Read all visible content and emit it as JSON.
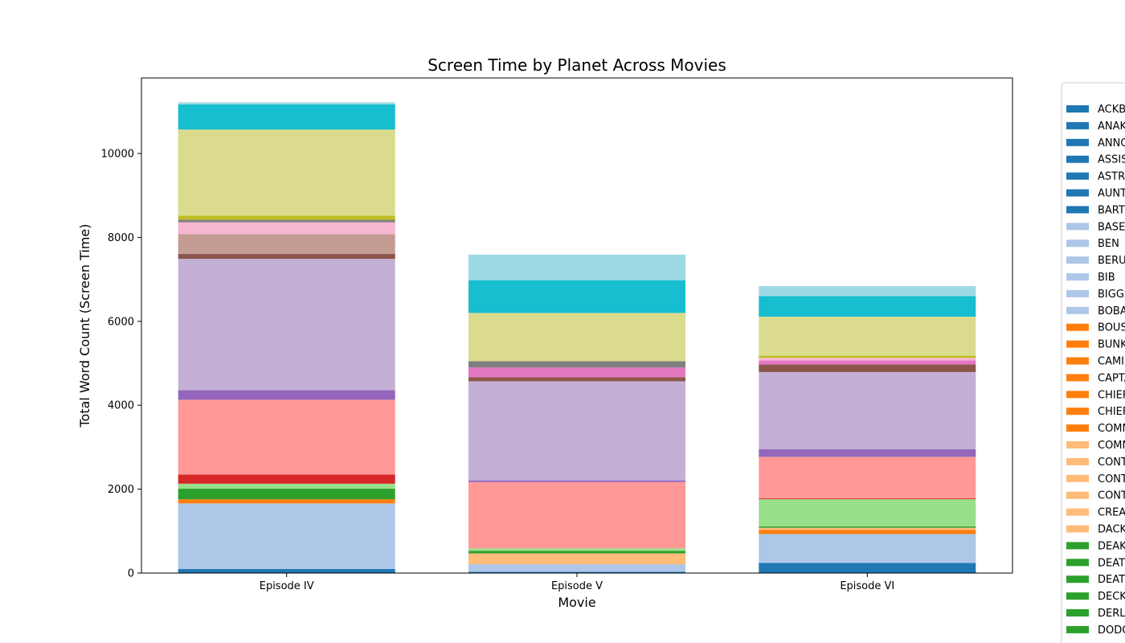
{
  "chart_data": {
    "type": "bar",
    "stacked": true,
    "title": "Screen Time by Planet Across Movies",
    "xlabel": "Movie",
    "ylabel": "Total Word Count (Screen Time)",
    "categories": [
      "Episode IV",
      "Episode V",
      "Episode VI"
    ],
    "ylim": [
      0,
      11800
    ],
    "yticks": [
      0,
      2000,
      4000,
      6000,
      8000,
      10000
    ],
    "grid": false,
    "legend_position": "right",
    "segments": [
      [
        {
          "value": 100,
          "color": "#1f77b4"
        },
        {
          "value": 1560,
          "color": "#aec7e8"
        },
        {
          "value": 100,
          "color": "#ff7f0e"
        },
        {
          "value": 250,
          "color": "#2ca02c"
        },
        {
          "value": 120,
          "color": "#98df8a"
        },
        {
          "value": 220,
          "color": "#d62728"
        },
        {
          "value": 1780,
          "color": "#ff9896"
        },
        {
          "value": 230,
          "color": "#9467bd"
        },
        {
          "value": 3130,
          "color": "#c5b0d5"
        },
        {
          "value": 120,
          "color": "#8c564b"
        },
        {
          "value": 470,
          "color": "#c49c94"
        },
        {
          "value": 280,
          "color": "#f7b6d2"
        },
        {
          "value": 60,
          "color": "#7f7f7f"
        },
        {
          "value": 100,
          "color": "#bcbd22"
        },
        {
          "value": 2050,
          "color": "#dbdb8d"
        },
        {
          "value": 600,
          "color": "#17becf"
        },
        {
          "value": 50,
          "color": "#9edae5"
        }
      ],
      [
        {
          "value": 30,
          "color": "#1f77b4"
        },
        {
          "value": 180,
          "color": "#aec7e8"
        },
        {
          "value": 260,
          "color": "#ffbb78"
        },
        {
          "value": 60,
          "color": "#2ca02c"
        },
        {
          "value": 60,
          "color": "#98df8a"
        },
        {
          "value": 1580,
          "color": "#ff9896"
        },
        {
          "value": 40,
          "color": "#9467bd"
        },
        {
          "value": 2360,
          "color": "#c5b0d5"
        },
        {
          "value": 100,
          "color": "#8c564b"
        },
        {
          "value": 230,
          "color": "#e377c2"
        },
        {
          "value": 150,
          "color": "#7f7f7f"
        },
        {
          "value": 1150,
          "color": "#dbdb8d"
        },
        {
          "value": 780,
          "color": "#17becf"
        },
        {
          "value": 610,
          "color": "#9edae5"
        }
      ],
      [
        {
          "value": 240,
          "color": "#1f77b4"
        },
        {
          "value": 690,
          "color": "#aec7e8"
        },
        {
          "value": 100,
          "color": "#ff7f0e"
        },
        {
          "value": 50,
          "color": "#ffbb78"
        },
        {
          "value": 30,
          "color": "#2ca02c"
        },
        {
          "value": 650,
          "color": "#98df8a"
        },
        {
          "value": 20,
          "color": "#d62728"
        },
        {
          "value": 990,
          "color": "#ff9896"
        },
        {
          "value": 180,
          "color": "#9467bd"
        },
        {
          "value": 1840,
          "color": "#c5b0d5"
        },
        {
          "value": 180,
          "color": "#8c564b"
        },
        {
          "value": 100,
          "color": "#e377c2"
        },
        {
          "value": 60,
          "color": "#f7b6d2"
        },
        {
          "value": 50,
          "color": "#bcbd22"
        },
        {
          "value": 930,
          "color": "#dbdb8d"
        },
        {
          "value": 490,
          "color": "#17becf"
        },
        {
          "value": 240,
          "color": "#9edae5"
        }
      ]
    ],
    "legend": [
      {
        "label": "ACKBAR",
        "color": "#1f77b4"
      },
      {
        "label": "ANAKIN",
        "color": "#1f77b4"
      },
      {
        "label": "ANNOUNCER",
        "color": "#1f77b4"
      },
      {
        "label": "ASSISTANT",
        "color": "#1f77b4"
      },
      {
        "label": "ASTRO",
        "color": "#1f77b4"
      },
      {
        "label": "AUNT",
        "color": "#1f77b4"
      },
      {
        "label": "BARTENDER",
        "color": "#1f77b4"
      },
      {
        "label": "BASE",
        "color": "#aec7e8"
      },
      {
        "label": "BEN",
        "color": "#aec7e8"
      },
      {
        "label": "BERU",
        "color": "#aec7e8"
      },
      {
        "label": "BIB",
        "color": "#aec7e8"
      },
      {
        "label": "BIGGS",
        "color": "#aec7e8"
      },
      {
        "label": "BOBA",
        "color": "#aec7e8"
      },
      {
        "label": "BOUSHH",
        "color": "#ff7f0e"
      },
      {
        "label": "BUNKER",
        "color": "#ff7f0e"
      },
      {
        "label": "CAMIE",
        "color": "#ff7f0e"
      },
      {
        "label": "CAPTAIN",
        "color": "#ff7f0e"
      },
      {
        "label": "CHIEF",
        "color": "#ff7f0e"
      },
      {
        "label": "CHIEF",
        "color": "#ff7f0e"
      },
      {
        "label": "COMMANDER",
        "color": "#ff7f0e"
      },
      {
        "label": "COMMUNICATIONS",
        "color": "#ffbb78"
      },
      {
        "label": "CONTROL",
        "color": "#ffbb78"
      },
      {
        "label": "CONTROLLER",
        "color": "#ffbb78"
      },
      {
        "label": "CONTROLLERS",
        "color": "#ffbb78"
      },
      {
        "label": "CREATURE",
        "color": "#ffbb78"
      },
      {
        "label": "DACK",
        "color": "#ffbb78"
      },
      {
        "label": "DEAK",
        "color": "#2ca02c"
      },
      {
        "label": "DEATH",
        "color": "#2ca02c"
      },
      {
        "label": "DEATH",
        "color": "#2ca02c"
      },
      {
        "label": "DECK",
        "color": "#2ca02c"
      },
      {
        "label": "DERLIN",
        "color": "#2ca02c"
      },
      {
        "label": "DODONNA",
        "color": "#2ca02c"
      }
    ]
  }
}
